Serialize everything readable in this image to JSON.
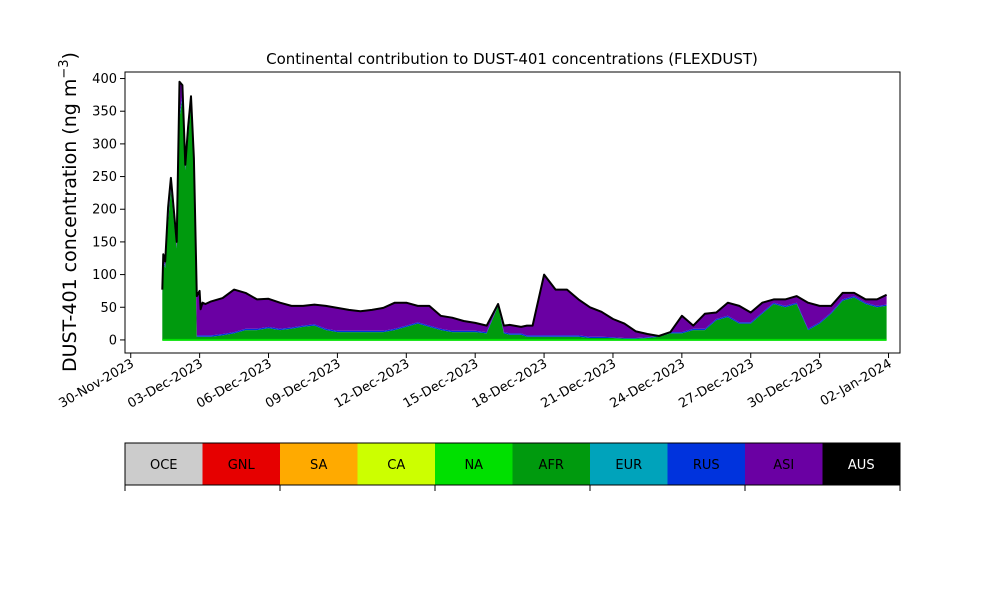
{
  "chart_data": {
    "type": "area",
    "title": "Continental contribution to DUST-401 concentrations (FLEXDUST)",
    "ylabel_main": "DUST-401 concentration (ng m",
    "ylabel_sup": "−3",
    "ylabel_end": ")",
    "xlabel": "",
    "x_axis": "date",
    "xlim": [
      "2023-11-29T18:00",
      "2024-01-02T12:00"
    ],
    "ylim": [
      -20,
      410
    ],
    "yticks": [
      0,
      50,
      100,
      150,
      200,
      250,
      300,
      350,
      400
    ],
    "xticks": [
      "30-Nov-2023",
      "03-Dec-2023",
      "06-Dec-2023",
      "09-Dec-2023",
      "12-Dec-2023",
      "15-Dec-2023",
      "18-Dec-2023",
      "21-Dec-2023",
      "24-Dec-2023",
      "27-Dec-2023",
      "30-Dec-2023",
      "02-Jan-2024"
    ],
    "x": [
      "2023-12-01T09:00",
      "2023-12-01T10:00",
      "2023-12-01T12:00",
      "2023-12-01T15:00",
      "2023-12-01T18:00",
      "2023-12-02T00:00",
      "2023-12-02T03:00",
      "2023-12-02T06:00",
      "2023-12-02T09:00",
      "2023-12-02T12:00",
      "2023-12-02T15:00",
      "2023-12-02T18:00",
      "2023-12-02T21:00",
      "2023-12-03T00:00",
      "2023-12-03T01:00",
      "2023-12-03T03:00",
      "2023-12-03T06:00",
      "2023-12-03T12:00",
      "2023-12-04T00:00",
      "2023-12-04T12:00",
      "2023-12-05T00:00",
      "2023-12-05T12:00",
      "2023-12-06T00:00",
      "2023-12-06T12:00",
      "2023-12-07T00:00",
      "2023-12-07T12:00",
      "2023-12-08T00:00",
      "2023-12-08T12:00",
      "2023-12-09T00:00",
      "2023-12-09T12:00",
      "2023-12-10T00:00",
      "2023-12-10T12:00",
      "2023-12-11T00:00",
      "2023-12-11T12:00",
      "2023-12-12T00:00",
      "2023-12-12T12:00",
      "2023-12-13T00:00",
      "2023-12-13T12:00",
      "2023-12-14T00:00",
      "2023-12-14T12:00",
      "2023-12-15T00:00",
      "2023-12-15T12:00",
      "2023-12-16T00:00",
      "2023-12-16T06:00",
      "2023-12-16T12:00",
      "2023-12-17T00:00",
      "2023-12-17T06:00",
      "2023-12-17T12:00",
      "2023-12-18T00:00",
      "2023-12-18T12:00",
      "2023-12-19T00:00",
      "2023-12-19T12:00",
      "2023-12-20T00:00",
      "2023-12-20T12:00",
      "2023-12-21T00:00",
      "2023-12-21T12:00",
      "2023-12-22T00:00",
      "2023-12-22T12:00",
      "2023-12-23T00:00",
      "2023-12-23T12:00",
      "2023-12-24T00:00",
      "2023-12-24T12:00",
      "2023-12-25T00:00",
      "2023-12-25T12:00",
      "2023-12-26T00:00",
      "2023-12-26T12:00",
      "2023-12-27T00:00",
      "2023-12-27T12:00",
      "2023-12-28T00:00",
      "2023-12-28T12:00",
      "2023-12-29T00:00",
      "2023-12-29T12:00",
      "2023-12-30T00:00",
      "2023-12-30T12:00",
      "2023-12-31T00:00",
      "2023-12-31T12:00",
      "2024-01-01T00:00",
      "2024-01-01T12:00",
      "2024-01-01T22:00"
    ],
    "series": [
      {
        "name": "AFR",
        "color": "#009a0e",
        "values": [
          70,
          120,
          110,
          180,
          230,
          140,
          340,
          370,
          260,
          310,
          360,
          270,
          5,
          5,
          5,
          5,
          5,
          5,
          7,
          10,
          15,
          15,
          18,
          15,
          17,
          20,
          22,
          15,
          12,
          12,
          12,
          12,
          12,
          15,
          20,
          25,
          20,
          15,
          12,
          12,
          12,
          10,
          52,
          10,
          8,
          8,
          5,
          5,
          5,
          5,
          5,
          5,
          3,
          3,
          3,
          2,
          2,
          3,
          5,
          10,
          10,
          15,
          15,
          30,
          35,
          25,
          25,
          40,
          55,
          50,
          55,
          15,
          25,
          40,
          60,
          65,
          55,
          50,
          52
        ]
      },
      {
        "name": "RUS",
        "color": "#0033dd",
        "values": [
          2,
          3,
          3,
          3,
          3,
          2,
          5,
          5,
          3,
          4,
          5,
          3,
          2,
          2,
          2,
          2,
          2,
          2,
          2,
          2,
          2,
          2,
          2,
          2,
          2,
          2,
          2,
          2,
          2,
          2,
          2,
          2,
          2,
          2,
          2,
          2,
          2,
          2,
          2,
          2,
          2,
          2,
          1,
          2,
          2,
          2,
          2,
          2,
          2,
          2,
          2,
          2,
          2,
          2,
          1,
          1,
          1,
          1,
          1,
          2,
          2,
          2,
          2,
          2,
          2,
          2,
          2,
          2,
          2,
          2,
          2,
          2,
          2,
          2,
          2,
          2,
          2,
          2,
          2
        ]
      },
      {
        "name": "ASI",
        "color": "#6a00a3",
        "values": [
          5,
          8,
          7,
          20,
          15,
          8,
          50,
          15,
          5,
          12,
          8,
          5,
          60,
          68,
          40,
          50,
          48,
          52,
          55,
          65,
          55,
          45,
          43,
          40,
          33,
          30,
          30,
          35,
          35,
          32,
          30,
          32,
          35,
          40,
          35,
          25,
          30,
          20,
          20,
          15,
          12,
          10,
          2,
          10,
          13,
          10,
          15,
          15,
          93,
          70,
          70,
          55,
          45,
          38,
          28,
          22,
          10,
          5,
          0,
          0,
          25,
          5,
          23,
          10,
          20,
          25,
          15,
          15,
          5,
          10,
          10,
          40,
          25,
          10,
          10,
          5,
          5,
          10,
          15
        ]
      }
    ],
    "legend": [
      {
        "label": "OCE",
        "color": "#cccccc",
        "text_color": "#000000"
      },
      {
        "label": "GNL",
        "color": "#e60000",
        "text_color": "#000000"
      },
      {
        "label": "SA",
        "color": "#ffaa00",
        "text_color": "#000000"
      },
      {
        "label": "CA",
        "color": "#ccff00",
        "text_color": "#000000"
      },
      {
        "label": "NA",
        "color": "#00e000",
        "text_color": "#000000"
      },
      {
        "label": "AFR",
        "color": "#009a0e",
        "text_color": "#000000"
      },
      {
        "label": "EUR",
        "color": "#00a3bb",
        "text_color": "#000000"
      },
      {
        "label": "RUS",
        "color": "#0033dd",
        "text_color": "#000000"
      },
      {
        "label": "ASI",
        "color": "#6a00a3",
        "text_color": "#000000"
      },
      {
        "label": "AUS",
        "color": "#000000",
        "text_color": "#ffffff"
      }
    ],
    "grid": false,
    "legend_placement": "below (colorbar)",
    "total_line_color": "#000000"
  }
}
